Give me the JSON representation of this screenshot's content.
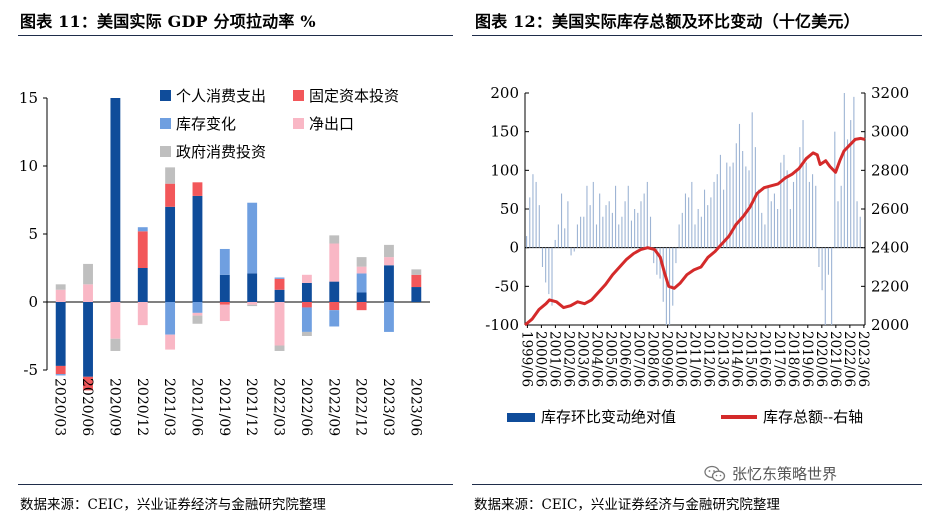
{
  "left": {
    "title": "图表 11：美国实际 GDP 分项拉动率 %",
    "source": "数据来源：CEIC，兴业证券经济与金融研究院整理",
    "chart_data": {
      "type": "bar",
      "stacked": true,
      "categories": [
        "2020/03",
        "2020/06",
        "2020/09",
        "2020/12",
        "2021/03",
        "2021/06",
        "2021/09",
        "2021/12",
        "2022/03",
        "2022/06",
        "2022/09",
        "2022/12",
        "2023/03",
        "2023/06"
      ],
      "yticks": [
        "-5",
        "0",
        "5",
        "10",
        "15"
      ],
      "ylim": [
        -5,
        15
      ],
      "legend_position": "top-left",
      "series": [
        {
          "name": "个人消费支出",
          "color": "#0f4c9a",
          "values": [
            -4.7,
            -5.5,
            15.0,
            2.5,
            7.0,
            7.8,
            2.0,
            2.1,
            0.9,
            1.4,
            1.5,
            0.7,
            2.7,
            1.1
          ]
        },
        {
          "name": "固定资本投资",
          "color": "#f2575a",
          "values": [
            -0.6,
            -1.0,
            0.0,
            2.7,
            1.7,
            1.0,
            -0.2,
            0.0,
            0.8,
            -0.4,
            -0.6,
            -0.6,
            0.0,
            0.9
          ]
        },
        {
          "name": "库存变化",
          "color": "#6f9fe0",
          "values": [
            -0.1,
            0.0,
            0.0,
            0.3,
            -2.4,
            -0.8,
            1.9,
            5.2,
            0.1,
            -1.8,
            -1.2,
            1.4,
            -2.2,
            0.0
          ]
        },
        {
          "name": "净出口",
          "color": "#f9b7c5",
          "values": [
            0.9,
            1.3,
            -2.7,
            -1.7,
            -1.1,
            -0.2,
            -1.2,
            -0.2,
            -3.2,
            0.6,
            2.8,
            0.5,
            0.6,
            0.0
          ]
        },
        {
          "name": "政府消费投资",
          "color": "#bfbfbf",
          "values": [
            0.4,
            1.5,
            -0.9,
            0.0,
            1.2,
            -0.6,
            0.0,
            -0.1,
            -0.4,
            -0.3,
            0.6,
            0.7,
            0.9,
            0.4
          ]
        }
      ]
    }
  },
  "right": {
    "title": "图表 12：美国实际库存总额及环比变动（十亿美元）",
    "source": "数据来源：CEIC，兴业证券经济与金融研究院整理",
    "chart_data": {
      "type": "bar",
      "categories": [
        "1999/06",
        "2000/06",
        "2001/06",
        "2002/06",
        "2003/06",
        "2004/06",
        "2005/06",
        "2006/06",
        "2007/06",
        "2008/06",
        "2009/06",
        "2010/06",
        "2011/06",
        "2012/06",
        "2013/06",
        "2014/06",
        "2015/06",
        "2016/06",
        "2017/06",
        "2018/06",
        "2019/06",
        "2020/06",
        "2021/06",
        "2022/06",
        "2023/06"
      ],
      "left_yticks": [
        "-100",
        "-50",
        "0",
        "50",
        "100",
        "150",
        "200"
      ],
      "right_yticks": [
        "2000",
        "2200",
        "2400",
        "2600",
        "2800",
        "3000",
        "3200"
      ],
      "ylim_left": [
        -100,
        200
      ],
      "ylim_right": [
        2000,
        3200
      ],
      "x_start": 1999.25,
      "x_end": 2023.5,
      "bar_series": {
        "name": "库存环比变动绝对值",
        "color": "#0f4c9a",
        "values": [
          15,
          65,
          95,
          85,
          55,
          -25,
          -45,
          -60,
          -75,
          10,
          30,
          70,
          25,
          60,
          -10,
          -5,
          30,
          40,
          40,
          80,
          55,
          85,
          30,
          70,
          40,
          55,
          60,
          45,
          80,
          30,
          40,
          60,
          80,
          35,
          50,
          45,
          60,
          70,
          85,
          40,
          -20,
          -35,
          -40,
          -70,
          -100,
          -100,
          -75,
          -20,
          30,
          45,
          70,
          65,
          85,
          30,
          50,
          40,
          75,
          55,
          65,
          85,
          95,
          120,
          75,
          110,
          105,
          110,
          135,
          160,
          125,
          105,
          100,
          175,
          130,
          75,
          45,
          30,
          80,
          60,
          70,
          50,
          110,
          120,
          100,
          50,
          85,
          100,
          130,
          165,
          110,
          85,
          95,
          80,
          -25,
          -55,
          -100,
          -35,
          -100,
          150,
          60,
          80,
          200,
          140,
          165,
          195,
          60,
          40,
          0
        ]
      },
      "line_series": {
        "name": "库存总额--右轴",
        "color": "#d42a2a",
        "points": [
          [
            1999.25,
            2000
          ],
          [
            1999.75,
            2030
          ],
          [
            2000.25,
            2080
          ],
          [
            2000.75,
            2110
          ],
          [
            2001.0,
            2130
          ],
          [
            2001.5,
            2120
          ],
          [
            2002.0,
            2090
          ],
          [
            2002.5,
            2100
          ],
          [
            2003.0,
            2120
          ],
          [
            2003.5,
            2110
          ],
          [
            2004.0,
            2130
          ],
          [
            2004.5,
            2170
          ],
          [
            2005.0,
            2210
          ],
          [
            2005.5,
            2260
          ],
          [
            2006.0,
            2300
          ],
          [
            2006.5,
            2340
          ],
          [
            2007.0,
            2370
          ],
          [
            2007.5,
            2390
          ],
          [
            2008.0,
            2400
          ],
          [
            2008.5,
            2390
          ],
          [
            2008.9,
            2350
          ],
          [
            2009.2,
            2270
          ],
          [
            2009.5,
            2200
          ],
          [
            2009.9,
            2190
          ],
          [
            2010.3,
            2215
          ],
          [
            2010.8,
            2260
          ],
          [
            2011.3,
            2285
          ],
          [
            2011.8,
            2300
          ],
          [
            2012.3,
            2350
          ],
          [
            2012.8,
            2380
          ],
          [
            2013.3,
            2420
          ],
          [
            2013.8,
            2460
          ],
          [
            2014.3,
            2520
          ],
          [
            2014.8,
            2560
          ],
          [
            2015.3,
            2610
          ],
          [
            2015.8,
            2680
          ],
          [
            2016.3,
            2710
          ],
          [
            2016.8,
            2720
          ],
          [
            2017.3,
            2730
          ],
          [
            2017.8,
            2760
          ],
          [
            2018.3,
            2780
          ],
          [
            2018.8,
            2810
          ],
          [
            2019.3,
            2860
          ],
          [
            2019.8,
            2890
          ],
          [
            2020.1,
            2880
          ],
          [
            2020.3,
            2830
          ],
          [
            2020.7,
            2850
          ],
          [
            2021.0,
            2820
          ],
          [
            2021.4,
            2790
          ],
          [
            2021.7,
            2850
          ],
          [
            2022.0,
            2900
          ],
          [
            2022.4,
            2930
          ],
          [
            2022.8,
            2960
          ],
          [
            2023.2,
            2965
          ],
          [
            2023.5,
            2960
          ]
        ]
      },
      "legend_position": "bottom"
    }
  },
  "watermark": "张忆东策略世界"
}
